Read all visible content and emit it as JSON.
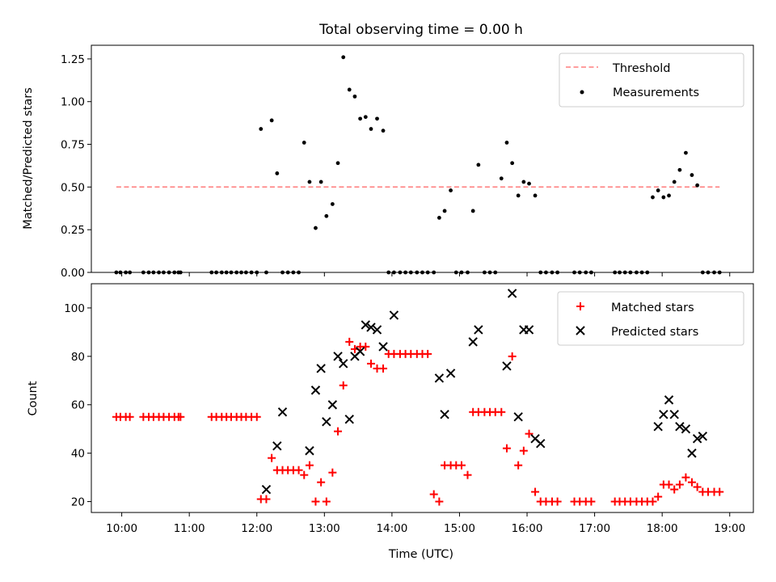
{
  "colors": {
    "threshold": "#ff7f7f",
    "measurements": "#000000",
    "matched": "#ff0000",
    "predicted": "#000000"
  },
  "chart_data": [
    {
      "type": "scatter",
      "title": "Total observing time = 0.00 h",
      "xlabel": "",
      "ylabel": "Matched/Predicted stars",
      "ylim": [
        0,
        1.33
      ],
      "xlim": [
        9.55,
        19.35
      ],
      "yticks": [
        "0.00",
        "0.25",
        "0.50",
        "0.75",
        "1.00",
        "1.25"
      ],
      "ytick_values": [
        0,
        0.25,
        0.5,
        0.75,
        1.0,
        1.25
      ],
      "legend": [
        "Threshold",
        "Measurements"
      ],
      "legend_position": "upper right",
      "threshold": {
        "name": "Threshold",
        "x": [
          9.92,
          18.85
        ],
        "y": 0.5,
        "style": "dashed"
      },
      "series": [
        {
          "name": "Measurements",
          "x": [
            9.92,
            9.98,
            10.06,
            10.12,
            10.32,
            10.4,
            10.47,
            10.55,
            10.62,
            10.7,
            10.78,
            10.84,
            10.87,
            11.33,
            11.4,
            11.48,
            11.55,
            11.62,
            11.7,
            11.77,
            11.84,
            11.92,
            12.0,
            12.06,
            12.14,
            12.22,
            12.3,
            12.38,
            12.46,
            12.54,
            12.62,
            12.7,
            12.78,
            12.87,
            12.95,
            13.03,
            13.12,
            13.2,
            13.28,
            13.37,
            13.45,
            13.53,
            13.61,
            13.69,
            13.78,
            13.87,
            13.95,
            14.03,
            14.12,
            14.2,
            14.28,
            14.37,
            14.45,
            14.53,
            14.62,
            14.7,
            14.78,
            14.87,
            14.95,
            15.03,
            15.12,
            15.2,
            15.28,
            15.37,
            15.45,
            15.53,
            15.62,
            15.7,
            15.78,
            15.87,
            15.95,
            16.03,
            16.12,
            16.2,
            16.28,
            16.37,
            16.45,
            16.7,
            16.78,
            16.87,
            16.95,
            17.3,
            17.37,
            17.45,
            17.53,
            17.62,
            17.7,
            17.78,
            17.86,
            17.94,
            18.02,
            18.1,
            18.18,
            18.26,
            18.35,
            18.44,
            18.52,
            18.6,
            18.68,
            18.77,
            18.85
          ],
          "y": [
            0,
            0,
            0,
            0,
            0,
            0,
            0,
            0,
            0,
            0,
            0,
            0,
            0,
            0,
            0,
            0,
            0,
            0,
            0,
            0,
            0,
            0,
            0,
            0.84,
            0,
            0.89,
            0.58,
            0,
            0,
            0,
            0,
            0.76,
            0.53,
            0.26,
            0.53,
            0.33,
            0.4,
            0.64,
            1.26,
            1.07,
            1.03,
            0.9,
            0.91,
            0.84,
            0.9,
            0.83,
            0,
            0,
            0,
            0,
            0,
            0,
            0,
            0,
            0,
            0.32,
            0.36,
            0.48,
            0,
            0,
            0,
            0.36,
            0.63,
            0,
            0,
            0,
            0.55,
            0.76,
            0.64,
            0.45,
            0.53,
            0.52,
            0.45,
            0,
            0,
            0,
            0,
            0,
            0,
            0,
            0,
            0,
            0,
            0,
            0,
            0,
            0,
            0,
            0.44,
            0.48,
            0.44,
            0.45,
            0.53,
            0.6,
            0.7,
            0.57,
            0.51,
            0,
            0,
            0,
            0
          ]
        }
      ]
    },
    {
      "type": "scatter",
      "title": "",
      "xlabel": "Time (UTC)",
      "ylabel": "Count",
      "ylim": [
        15.5,
        110
      ],
      "xlim": [
        9.55,
        19.35
      ],
      "yticks": [
        "20",
        "40",
        "60",
        "80",
        "100"
      ],
      "ytick_values": [
        20,
        40,
        60,
        80,
        100
      ],
      "xticks": [
        "10:00",
        "11:00",
        "12:00",
        "13:00",
        "14:00",
        "15:00",
        "16:00",
        "17:00",
        "18:00",
        "19:00"
      ],
      "xtick_values": [
        10,
        11,
        12,
        13,
        14,
        15,
        16,
        17,
        18,
        19
      ],
      "legend": [
        "Matched stars",
        "Predicted stars"
      ],
      "legend_position": "upper right",
      "series": [
        {
          "name": "Matched stars",
          "marker": "+",
          "x": [
            9.92,
            9.98,
            10.06,
            10.12,
            10.32,
            10.4,
            10.47,
            10.55,
            10.62,
            10.7,
            10.78,
            10.84,
            10.87,
            11.33,
            11.4,
            11.48,
            11.55,
            11.62,
            11.7,
            11.77,
            11.84,
            11.92,
            12.0,
            12.06,
            12.14,
            12.22,
            12.3,
            12.38,
            12.46,
            12.54,
            12.62,
            12.7,
            12.78,
            12.87,
            12.95,
            13.03,
            13.12,
            13.2,
            13.28,
            13.37,
            13.45,
            13.53,
            13.61,
            13.69,
            13.78,
            13.87,
            13.95,
            14.03,
            14.12,
            14.2,
            14.28,
            14.37,
            14.45,
            14.53,
            14.62,
            14.7,
            14.78,
            14.87,
            14.95,
            15.03,
            15.12,
            15.2,
            15.28,
            15.37,
            15.45,
            15.53,
            15.62,
            15.7,
            15.78,
            15.87,
            15.95,
            16.03,
            16.12,
            16.2,
            16.28,
            16.37,
            16.45,
            16.7,
            16.78,
            16.87,
            16.95,
            17.3,
            17.37,
            17.45,
            17.53,
            17.62,
            17.7,
            17.78,
            17.86,
            17.94,
            18.02,
            18.1,
            18.18,
            18.26,
            18.35,
            18.44,
            18.52,
            18.6,
            18.68,
            18.77,
            18.85
          ],
          "y": [
            55,
            55,
            55,
            55,
            55,
            55,
            55,
            55,
            55,
            55,
            55,
            55,
            55,
            55,
            55,
            55,
            55,
            55,
            55,
            55,
            55,
            55,
            55,
            21,
            21,
            38,
            33,
            33,
            33,
            33,
            33,
            31,
            35,
            20,
            28,
            20,
            32,
            49,
            68,
            86,
            83,
            84,
            84,
            77,
            75,
            75,
            81,
            81,
            81,
            81,
            81,
            81,
            81,
            81,
            23,
            20,
            35,
            35,
            35,
            35,
            31,
            57,
            57,
            57,
            57,
            57,
            57,
            42,
            80,
            35,
            41,
            48,
            24,
            20,
            20,
            20,
            20,
            20,
            20,
            20,
            20,
            20,
            20,
            20,
            20,
            20,
            20,
            20,
            20,
            22,
            27,
            27,
            25,
            27,
            30,
            28,
            26,
            24,
            24,
            24,
            24
          ]
        },
        {
          "name": "Predicted stars",
          "marker": "x",
          "x": [
            12.14,
            12.3,
            12.38,
            12.78,
            12.87,
            12.95,
            13.03,
            13.12,
            13.2,
            13.28,
            13.37,
            13.45,
            13.53,
            13.61,
            13.69,
            13.78,
            13.87,
            14.03,
            14.7,
            14.78,
            14.87,
            15.2,
            15.28,
            15.7,
            15.78,
            15.87,
            15.95,
            16.03,
            16.12,
            16.2,
            17.94,
            18.02,
            18.1,
            18.18,
            18.26,
            18.35,
            18.44,
            18.52,
            18.6
          ],
          "y": [
            25,
            43,
            57,
            41,
            66,
            75,
            53,
            60,
            80,
            77,
            54,
            80,
            82,
            93,
            92,
            91,
            84,
            97,
            71,
            56,
            73,
            86,
            91,
            76,
            106,
            55,
            91,
            91,
            46,
            44,
            51,
            56,
            62,
            56,
            51,
            50,
            40,
            46,
            47
          ]
        }
      ]
    }
  ]
}
